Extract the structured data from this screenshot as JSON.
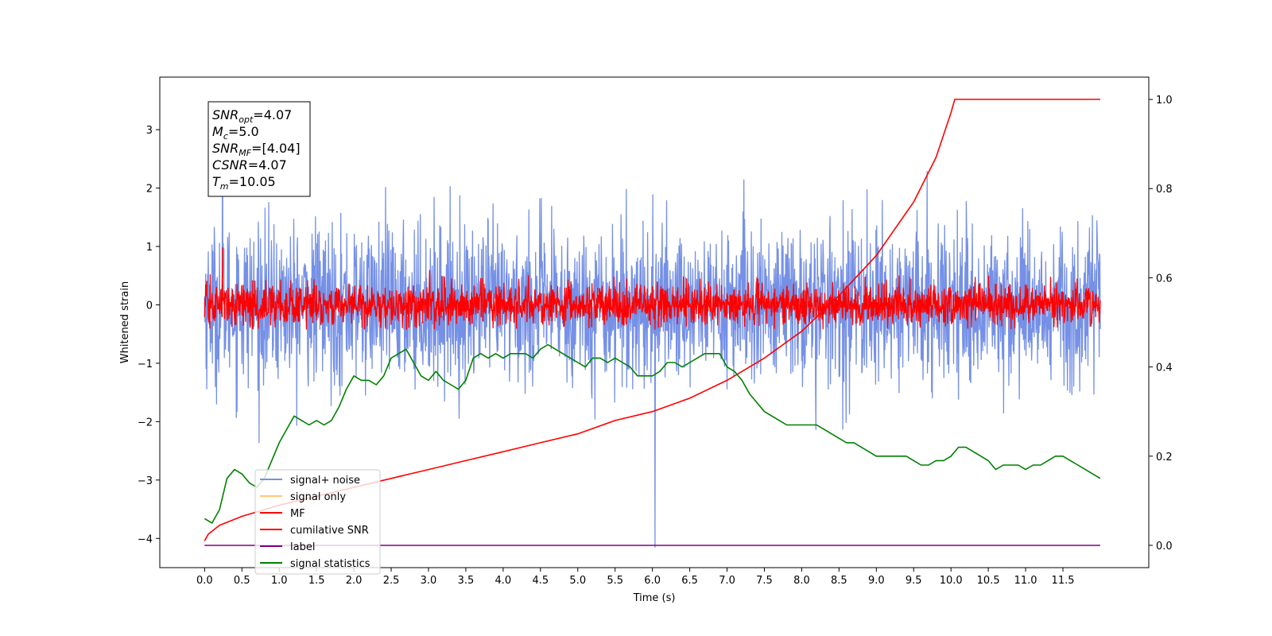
{
  "chart_data": {
    "type": "line",
    "xlabel": "Time (s)",
    "ylabel": "Whitened strain",
    "x_ticks": [
      "0.0",
      "0.5",
      "1.0",
      "1.5",
      "2.0",
      "2.5",
      "3.0",
      "3.5",
      "4.0",
      "4.5",
      "5.0",
      "5.5",
      "6.0",
      "6.5",
      "7.0",
      "7.5",
      "8.0",
      "8.5",
      "9.0",
      "9.5",
      "10.0",
      "10.5",
      "11.0",
      "11.5"
    ],
    "xlim": [
      -0.6,
      12.65
    ],
    "ylim_left": [
      -4.5,
      3.9
    ],
    "ylim_right": [
      -0.05,
      1.05
    ],
    "y_ticks_left": [
      3,
      2,
      1,
      0,
      -1,
      -2,
      -3,
      -4
    ],
    "y_ticks_right": [
      "1.0",
      "0.8",
      "0.6",
      "0.4",
      "0.2",
      "0.0"
    ],
    "annotation": {
      "lines": [
        {
          "base": "SNR",
          "sub": "opt",
          "rest": "=4.07"
        },
        {
          "base": "M",
          "sub": "c",
          "rest": "=5.0"
        },
        {
          "base": "SNR",
          "sub": "MF",
          "rest": "=[4.04]"
        },
        {
          "base": "CSNR",
          "sub": "",
          "rest": "=4.07"
        },
        {
          "base": "T",
          "sub": "m",
          "rest": "=10.05"
        }
      ]
    },
    "legend": {
      "placement": "lower-left",
      "entries": [
        {
          "label": "signal+ noise",
          "color": "#7590e6"
        },
        {
          "label": "signal only",
          "color": "#ffc875"
        },
        {
          "label": "MF",
          "color": "#ff0000"
        },
        {
          "label": "cumilative SNR",
          "color": "#ff0000"
        },
        {
          "label": "label",
          "color": "#800080"
        },
        {
          "label": "signal statistics",
          "color": "#008000"
        }
      ]
    },
    "series": [
      {
        "name": "signal+ noise",
        "axis": "left",
        "color": "#7590e6",
        "kind": "noise",
        "x_range": [
          0.0,
          12.0
        ],
        "center": 0.0,
        "typical_amplitude": 1.5,
        "peak_max": 3.45,
        "peak_min": -4.15
      },
      {
        "name": "MF",
        "axis": "left",
        "color": "#ff0000",
        "kind": "noise",
        "x_range": [
          0.0,
          12.0
        ],
        "center": 0.0,
        "typical_amplitude": 0.4,
        "peak_max": 0.98,
        "peak_min": -0.42
      },
      {
        "name": "cumilative SNR",
        "axis": "right",
        "color": "#ff0000",
        "kind": "line",
        "x": [
          0.0,
          0.05,
          0.2,
          0.5,
          1.0,
          1.5,
          2.0,
          2.5,
          3.0,
          3.5,
          4.0,
          4.5,
          5.0,
          5.5,
          6.0,
          6.5,
          7.0,
          7.5,
          8.0,
          8.5,
          9.0,
          9.5,
          9.8,
          10.0,
          10.05,
          11.0,
          12.0
        ],
        "y": [
          0.01,
          0.025,
          0.045,
          0.065,
          0.09,
          0.11,
          0.13,
          0.15,
          0.17,
          0.19,
          0.21,
          0.23,
          0.25,
          0.28,
          0.3,
          0.33,
          0.37,
          0.42,
          0.48,
          0.56,
          0.65,
          0.77,
          0.87,
          0.97,
          1.0,
          1.0,
          1.0
        ]
      },
      {
        "name": "label",
        "axis": "right",
        "color": "#800080",
        "kind": "line",
        "x": [
          0.0,
          12.0
        ],
        "y": [
          0.0,
          0.0
        ]
      },
      {
        "name": "signal statistics",
        "axis": "right",
        "color": "#008000",
        "kind": "line",
        "x": [
          0.0,
          0.1,
          0.2,
          0.3,
          0.4,
          0.5,
          0.6,
          0.7,
          0.8,
          0.9,
          1.0,
          1.1,
          1.2,
          1.3,
          1.4,
          1.5,
          1.6,
          1.7,
          1.8,
          1.9,
          2.0,
          2.1,
          2.2,
          2.3,
          2.4,
          2.5,
          2.6,
          2.7,
          2.8,
          2.9,
          3.0,
          3.1,
          3.2,
          3.3,
          3.4,
          3.5,
          3.6,
          3.7,
          3.8,
          3.9,
          4.0,
          4.1,
          4.2,
          4.3,
          4.4,
          4.5,
          4.6,
          4.7,
          4.8,
          4.9,
          5.0,
          5.1,
          5.2,
          5.3,
          5.4,
          5.5,
          5.6,
          5.7,
          5.8,
          5.9,
          6.0,
          6.1,
          6.2,
          6.3,
          6.4,
          6.5,
          6.6,
          6.7,
          6.8,
          6.9,
          7.0,
          7.1,
          7.2,
          7.3,
          7.4,
          7.5,
          7.6,
          7.7,
          7.8,
          7.9,
          8.0,
          8.1,
          8.2,
          8.3,
          8.4,
          8.5,
          8.6,
          8.7,
          8.8,
          8.9,
          9.0,
          9.1,
          9.2,
          9.3,
          9.4,
          9.5,
          9.6,
          9.7,
          9.8,
          9.9,
          10.0,
          10.1,
          10.2,
          10.3,
          10.4,
          10.5,
          10.6,
          10.7,
          10.8,
          10.9,
          11.0,
          11.1,
          11.2,
          11.3,
          11.4,
          11.5,
          11.6,
          11.7,
          11.8,
          11.9,
          12.0
        ],
        "y": [
          0.06,
          0.05,
          0.08,
          0.15,
          0.17,
          0.16,
          0.14,
          0.13,
          0.15,
          0.19,
          0.23,
          0.26,
          0.29,
          0.28,
          0.27,
          0.28,
          0.27,
          0.28,
          0.31,
          0.35,
          0.38,
          0.37,
          0.37,
          0.36,
          0.38,
          0.42,
          0.43,
          0.44,
          0.41,
          0.38,
          0.37,
          0.39,
          0.37,
          0.36,
          0.35,
          0.37,
          0.42,
          0.43,
          0.42,
          0.43,
          0.42,
          0.43,
          0.43,
          0.43,
          0.42,
          0.44,
          0.45,
          0.44,
          0.43,
          0.42,
          0.41,
          0.4,
          0.42,
          0.42,
          0.41,
          0.42,
          0.41,
          0.4,
          0.38,
          0.38,
          0.38,
          0.39,
          0.41,
          0.41,
          0.4,
          0.41,
          0.42,
          0.43,
          0.43,
          0.43,
          0.4,
          0.39,
          0.37,
          0.34,
          0.32,
          0.3,
          0.29,
          0.28,
          0.27,
          0.27,
          0.27,
          0.27,
          0.27,
          0.26,
          0.25,
          0.24,
          0.23,
          0.23,
          0.22,
          0.21,
          0.2,
          0.2,
          0.2,
          0.2,
          0.2,
          0.19,
          0.18,
          0.18,
          0.19,
          0.19,
          0.2,
          0.22,
          0.22,
          0.21,
          0.2,
          0.19,
          0.17,
          0.18,
          0.18,
          0.18,
          0.17,
          0.18,
          0.18,
          0.19,
          0.2,
          0.2,
          0.19,
          0.18,
          0.17,
          0.16,
          0.15
        ]
      }
    ]
  }
}
